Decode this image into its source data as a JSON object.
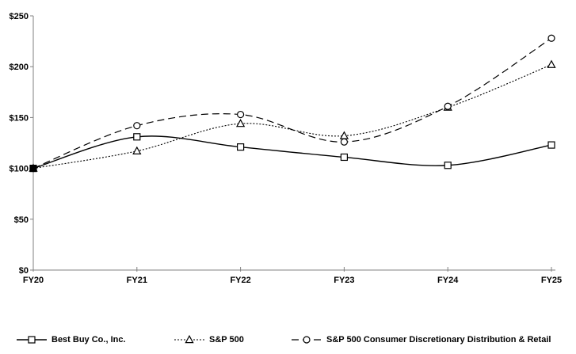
{
  "chart_data": {
    "type": "line",
    "title": "",
    "categories": [
      "FY20",
      "FY21",
      "FY22",
      "FY23",
      "FY24",
      "FY25"
    ],
    "series": [
      {
        "name": "Best Buy Co., Inc.",
        "values": [
          100,
          131,
          121,
          111,
          103,
          123
        ],
        "line_style": "solid",
        "marker": "square",
        "color": "#000000"
      },
      {
        "name": "S&P 500",
        "values": [
          100,
          117,
          144,
          132,
          160,
          202
        ],
        "line_style": "dotted",
        "marker": "triangle",
        "color": "#000000"
      },
      {
        "name": "S&P 500 Consumer Discretionary Distribution & Retail",
        "values": [
          100,
          142,
          153,
          126,
          161,
          228
        ],
        "line_style": "dashed",
        "marker": "circle",
        "color": "#000000"
      }
    ],
    "x_axis": {
      "labels": [
        "FY20",
        "FY21",
        "FY22",
        "FY23",
        "FY24",
        "FY25"
      ]
    },
    "y_axis": {
      "tick_labels": [
        "$0",
        "$50",
        "$100",
        "$150",
        "$200",
        "$250"
      ],
      "tick_values": [
        0,
        50,
        100,
        150,
        200,
        250
      ],
      "min": 0,
      "max": 250
    },
    "legend_position": "bottom",
    "grid": false,
    "smoothed": true,
    "start_value_marker_filled": true,
    "axis_color": "#808080",
    "background_color": "#ffffff"
  }
}
